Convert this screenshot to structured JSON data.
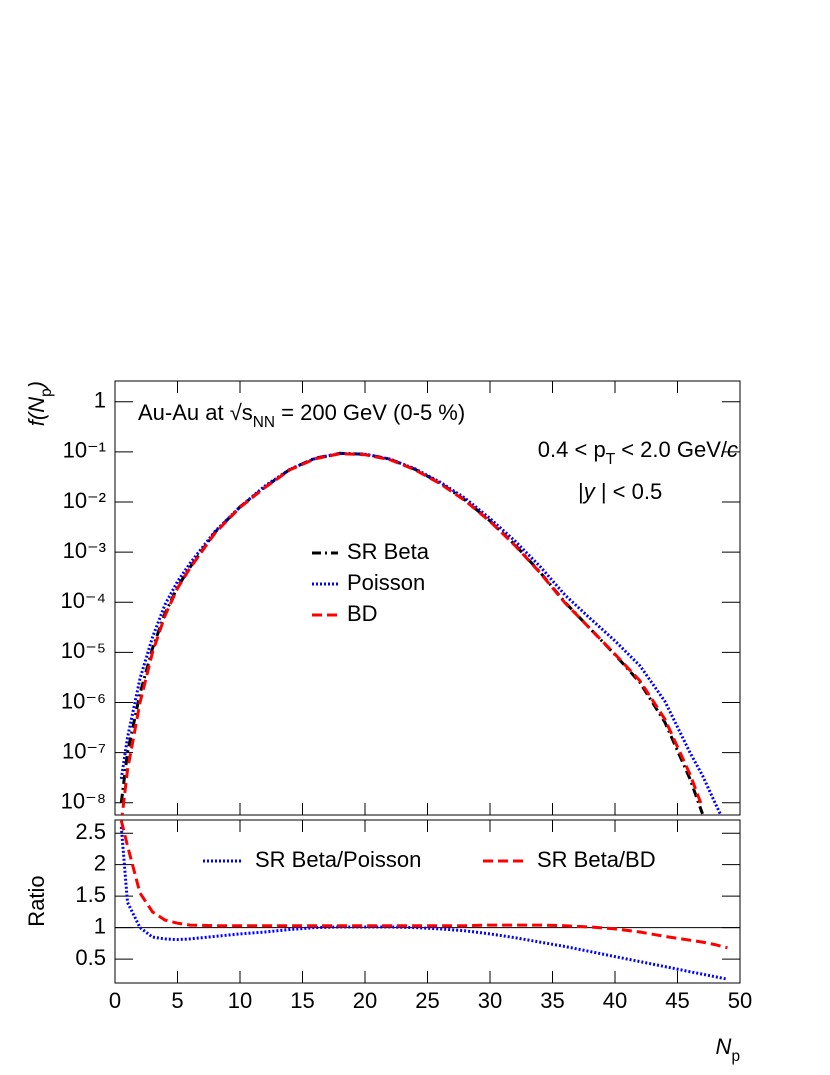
{
  "chart_data": [
    {
      "type": "line",
      "log_y": true,
      "ylabel": [
        {
          "text": "f(N",
          "style": "italic"
        },
        {
          "text": "p",
          "style": "sub"
        },
        {
          "text": ")",
          "style": "italic"
        }
      ],
      "annotations": [
        [
          {
            "text": "Au-Au at √s",
            "style": "normal"
          },
          {
            "text": "NN",
            "style": "sub"
          },
          {
            "text": " = 200 GeV (0-5 %)",
            "style": "normal"
          }
        ],
        [
          {
            "text": "0.4 < p",
            "style": "normal"
          },
          {
            "text": "T",
            "style": "sub"
          },
          {
            "text": " < 2.0 GeV/",
            "style": "normal"
          },
          {
            "text": "c",
            "style": "italic"
          }
        ],
        [
          {
            "text": "|",
            "style": "normal"
          },
          {
            "text": "y",
            "style": "italic"
          },
          {
            "text": " | < 0.5",
            "style": "normal"
          }
        ]
      ],
      "xlim": [
        0,
        50
      ],
      "ylim": [
        5.7e-09,
        2.6
      ],
      "yticks": [
        1,
        {
          "value": 0.1,
          "label": "10⁻¹"
        },
        {
          "value": 0.01,
          "label": "10⁻²"
        },
        {
          "value": 0.001,
          "label": "10⁻³"
        },
        {
          "value": 0.0001,
          "label": "10⁻⁴"
        },
        {
          "value": 1e-05,
          "label": "10⁻⁵"
        },
        {
          "value": 1e-06,
          "label": "10⁻⁶"
        },
        {
          "value": 1e-07,
          "label": "10⁻⁷"
        },
        {
          "value": 1e-08,
          "label": "10⁻⁸"
        }
      ],
      "x": [
        0.5,
        1,
        2,
        3,
        4,
        5,
        6,
        8,
        10,
        12,
        14,
        16,
        18,
        20,
        22,
        24,
        26,
        28,
        30,
        32,
        34,
        36,
        38,
        40,
        42,
        44,
        46,
        47,
        48,
        49
      ],
      "series": [
        {
          "name": "SR Beta",
          "color": "#000000",
          "dash": "dash-dot",
          "values": [
            1e-08,
            1e-07,
            1.5e-06,
            1.2e-05,
            6e-05,
            0.0002,
            0.0005,
            0.0025,
            0.008,
            0.02,
            0.045,
            0.075,
            0.094,
            0.09,
            0.072,
            0.045,
            0.024,
            0.011,
            0.0042,
            0.0014,
            0.0004,
            0.0001,
            3e-05,
            9e-06,
            2.5e-06,
            4e-07,
            3e-08,
            6e-09,
            null,
            null
          ]
        },
        {
          "name": "Poisson",
          "color": "#0000ff",
          "dash": "dotted",
          "values": [
            3e-08,
            2e-07,
            3e-06,
            2e-05,
            9e-05,
            0.00026,
            0.0006,
            0.0026,
            0.008,
            0.021,
            0.045,
            0.074,
            0.093,
            0.09,
            0.072,
            0.046,
            0.025,
            0.012,
            0.0047,
            0.00167,
            0.00052,
            0.00014,
            4.8e-05,
            1.7e-05,
            5.4e-06,
            1.05e-06,
            1e-07,
            3.5e-08,
            1e-08,
            3e-09
          ]
        },
        {
          "name": "BD",
          "color": "#ff0000",
          "dash": "dashed",
          "values": [
            4e-09,
            4.5e-08,
            1e-06,
            1e-05,
            5.4e-05,
            0.00019,
            0.00048,
            0.0024,
            0.0078,
            0.0195,
            0.044,
            0.073,
            0.092,
            0.088,
            0.07,
            0.044,
            0.0233,
            0.0107,
            0.0041,
            0.00136,
            0.00039,
            9.7e-05,
            3e-05,
            9.2e-06,
            2.7e-06,
            4.6e-07,
            3.7e-08,
            8e-09,
            null,
            null
          ]
        }
      ]
    },
    {
      "type": "line",
      "ylabel": "Ratio",
      "xlabel": [
        {
          "text": "N",
          "style": "italic"
        },
        {
          "text": "p",
          "style": "sub"
        }
      ],
      "xlim": [
        0,
        50
      ],
      "xticks": [
        0,
        5,
        10,
        15,
        20,
        25,
        30,
        35,
        40,
        45,
        50
      ],
      "ylim": [
        0.12,
        2.71
      ],
      "yticks": [
        0.5,
        1,
        1.5,
        2,
        2.5
      ],
      "hline": 1,
      "x": [
        0.5,
        1,
        2,
        3,
        4,
        5,
        6,
        8,
        10,
        12,
        14,
        16,
        18,
        20,
        22,
        24,
        26,
        28,
        30,
        32,
        34,
        36,
        38,
        40,
        42,
        44,
        46,
        47,
        48,
        49
      ],
      "series": [
        {
          "name": "SR Beta/Poisson",
          "color": "#0000ff",
          "dash": "dotted",
          "values": [
            2.6,
            1.4,
            1.0,
            0.85,
            0.82,
            0.81,
            0.82,
            0.86,
            0.9,
            0.93,
            0.97,
            1.0,
            1.01,
            1.01,
            1.01,
            1.0,
            0.98,
            0.95,
            0.9,
            0.84,
            0.77,
            0.7,
            0.62,
            0.54,
            0.46,
            0.38,
            0.3,
            0.26,
            0.22,
            0.18
          ]
        },
        {
          "name": "SR Beta/BD",
          "color": "#ff0000",
          "dash": "dashed",
          "values": [
            2.7,
            2.3,
            1.55,
            1.25,
            1.12,
            1.07,
            1.04,
            1.03,
            1.03,
            1.03,
            1.03,
            1.03,
            1.03,
            1.03,
            1.03,
            1.03,
            1.03,
            1.03,
            1.04,
            1.04,
            1.04,
            1.03,
            1.01,
            0.98,
            0.93,
            0.86,
            0.8,
            0.77,
            0.73,
            0.68
          ]
        }
      ]
    }
  ]
}
